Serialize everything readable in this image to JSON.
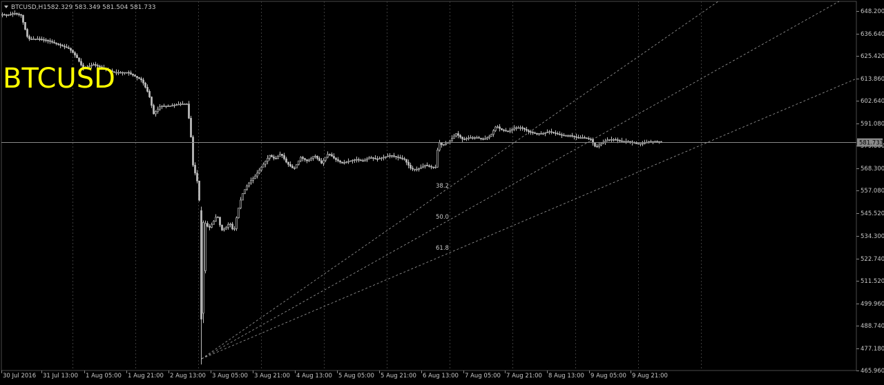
{
  "chart_data": {
    "type": "candlestick",
    "symbol_timeframe": "BTCUSD,H1",
    "ohlc_header": "582.329 583.349 581.504 581.733",
    "watermark": "BTCUSD",
    "current_price_label": "581.733",
    "ylim": [
      465.96,
      653.0
    ],
    "y_ticks": [
      "648.200",
      "636.640",
      "625.420",
      "613.860",
      "602.640",
      "591.080",
      "579.860",
      "568.300",
      "557.080",
      "545.520",
      "534.300",
      "522.740",
      "511.520",
      "499.960",
      "488.740",
      "477.180",
      "465.960"
    ],
    "x_ticks": [
      "30 Jul 2016",
      "31 Jul 13:00",
      "1 Aug 05:00",
      "1 Aug 21:00",
      "2 Aug 13:00",
      "3 Aug 05:00",
      "3 Aug 21:00",
      "4 Aug 13:00",
      "5 Aug 05:00",
      "5 Aug 21:00",
      "6 Aug 13:00",
      "7 Aug 05:00",
      "7 Aug 21:00",
      "8 Aug 13:00",
      "9 Aug 05:00",
      "9 Aug 21:00"
    ],
    "fibonacci_fan_levels": [
      "38.2",
      "50.0",
      "61.8"
    ],
    "grid": true,
    "close_anchors": [
      [
        0,
        646.5
      ],
      [
        10,
        646.0
      ],
      [
        20,
        647.0
      ],
      [
        30,
        646.0
      ],
      [
        35,
        640.0
      ],
      [
        40,
        634.0
      ],
      [
        55,
        634.0
      ],
      [
        70,
        633.0
      ],
      [
        85,
        631.0
      ],
      [
        100,
        629.0
      ],
      [
        110,
        625.0
      ],
      [
        120,
        619.0
      ],
      [
        135,
        621.0
      ],
      [
        150,
        619.0
      ],
      [
        165,
        617.0
      ],
      [
        185,
        617.0
      ],
      [
        205,
        613.0
      ],
      [
        215,
        606.0
      ],
      [
        222,
        596.0
      ],
      [
        232,
        600.0
      ],
      [
        245,
        600.0
      ],
      [
        260,
        601.0
      ],
      [
        270,
        601.0
      ],
      [
        275,
        589.0
      ],
      [
        279,
        570.0
      ],
      [
        285,
        562.0
      ],
      [
        289,
        549.0
      ],
      [
        292,
        492.0
      ],
      [
        296,
        541.0
      ],
      [
        302,
        538.0
      ],
      [
        308,
        541.0
      ],
      [
        314,
        545.0
      ],
      [
        320,
        537.0
      ],
      [
        326,
        538.0
      ],
      [
        332,
        541.0
      ],
      [
        338,
        536.0
      ],
      [
        344,
        547.0
      ],
      [
        350,
        555.0
      ],
      [
        356,
        559.0
      ],
      [
        362,
        562.0
      ],
      [
        368,
        564.0
      ],
      [
        374,
        567.0
      ],
      [
        382,
        571.0
      ],
      [
        390,
        575.0
      ],
      [
        398,
        573.0
      ],
      [
        406,
        576.0
      ],
      [
        415,
        571.0
      ],
      [
        425,
        568.0
      ],
      [
        435,
        574.0
      ],
      [
        445,
        572.0
      ],
      [
        455,
        575.0
      ],
      [
        465,
        571.0
      ],
      [
        475,
        576.0
      ],
      [
        485,
        573.0
      ],
      [
        495,
        571.0
      ],
      [
        505,
        572.0
      ],
      [
        515,
        573.0
      ],
      [
        525,
        572.0
      ],
      [
        535,
        574.0
      ],
      [
        545,
        573.0
      ],
      [
        555,
        574.0
      ],
      [
        565,
        575.0
      ],
      [
        575,
        574.0
      ],
      [
        585,
        573.0
      ],
      [
        595,
        568.0
      ],
      [
        605,
        568.0
      ],
      [
        615,
        570.0
      ],
      [
        625,
        569.0
      ],
      [
        631,
        569.0
      ],
      [
        634,
        582.0
      ],
      [
        640,
        580.0
      ],
      [
        650,
        582.0
      ],
      [
        660,
        586.0
      ],
      [
        670,
        583.0
      ],
      [
        680,
        584.0
      ],
      [
        690,
        584.0
      ],
      [
        700,
        583.0
      ],
      [
        710,
        585.0
      ],
      [
        718,
        590.0
      ],
      [
        725,
        588.0
      ],
      [
        735,
        587.0
      ],
      [
        745,
        589.0
      ],
      [
        755,
        589.0
      ],
      [
        765,
        587.0
      ],
      [
        775,
        586.0
      ],
      [
        785,
        586.0
      ],
      [
        795,
        587.0
      ],
      [
        805,
        586.0
      ],
      [
        815,
        585.0
      ],
      [
        825,
        585.0
      ],
      [
        835,
        584.0
      ],
      [
        845,
        584.0
      ],
      [
        855,
        583.0
      ],
      [
        862,
        579.0
      ],
      [
        870,
        581.0
      ],
      [
        880,
        583.0
      ],
      [
        890,
        583.0
      ],
      [
        900,
        582.0
      ],
      [
        910,
        582.0
      ],
      [
        920,
        581.0
      ],
      [
        930,
        581.0
      ],
      [
        940,
        582.0
      ],
      [
        950,
        582.0
      ],
      [
        959,
        581.73
      ]
    ],
    "colors": {
      "background": "#000000",
      "grid": "#3c3c3c",
      "candle": "#bfbfbf",
      "axis_text": "#c8c8c8",
      "watermark": "#ffff00",
      "fan_line": "#a0a0a0",
      "price_line": "#8a8a8a",
      "price_tag_bg": "#8a8a8a"
    }
  }
}
